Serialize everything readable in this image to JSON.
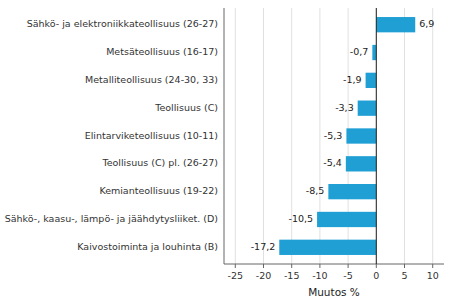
{
  "chart_data": {
    "type": "bar",
    "orientation": "horizontal",
    "categories": [
      "Kaivostoiminta  ja louhinta (B)",
      "Sähkö-, kaasu-, lämpö- ja jäähdytysliiket. (D)",
      "Kemianteollisuus (19-22)",
      "Teollisuus (C) pl. (26-27)",
      "Elintarviketeollisuus (10-11)",
      "Teollisuus (C)",
      "Metalliteollisuus (24-30, 33)",
      "Metsäteollisuus (16-17)",
      "Sähkö- ja elektroniikkateollisuus (26-27)"
    ],
    "values": [
      -17.2,
      -10.5,
      -8.5,
      -5.4,
      -5.3,
      -3.3,
      -1.9,
      -0.7,
      6.9
    ],
    "value_labels": [
      "-17,2",
      "-10,5",
      "-8,5",
      "-5,4",
      "-5,3",
      "-3,3",
      "-1,9",
      "-0,7",
      "6,9"
    ],
    "data_labels": true,
    "color": "#1f9fd4",
    "xlabel": "Muutos %",
    "xlim": [
      -27,
      12
    ],
    "xticks": [
      -25,
      -20,
      -15,
      -10,
      -5,
      0,
      5,
      10
    ],
    "grid": true
  }
}
